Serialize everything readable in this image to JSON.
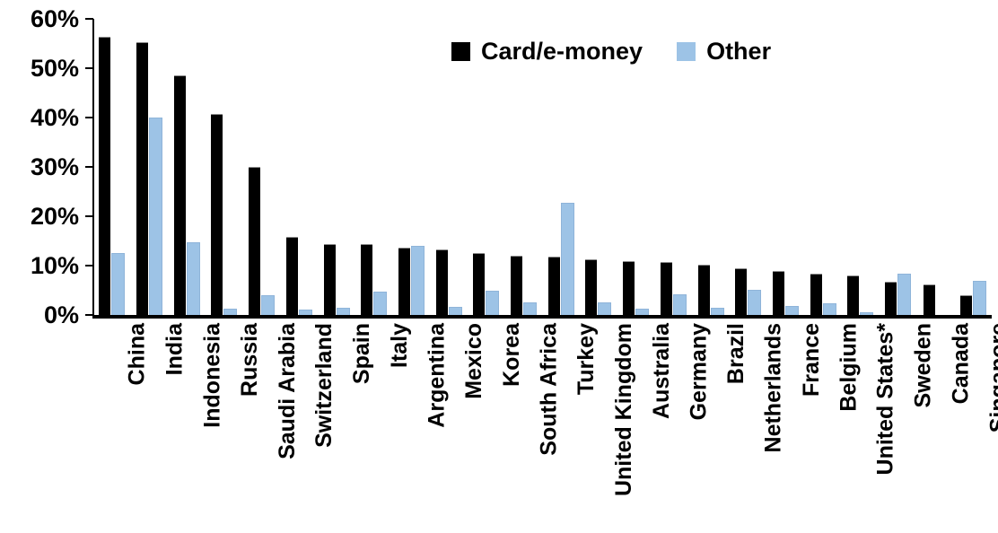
{
  "chart_data": {
    "type": "bar",
    "title": "",
    "xlabel": "",
    "ylabel": "",
    "ylim": [
      0,
      60
    ],
    "ytick_values": [
      0,
      10,
      20,
      30,
      40,
      50,
      60
    ],
    "ytick_labels": [
      "0%",
      "10%",
      "20%",
      "30%",
      "40%",
      "50%",
      "60%"
    ],
    "grid": false,
    "legend_position": "top-center",
    "categories": [
      "China",
      "India",
      "Indonesia",
      "Russia",
      "Saudi Arabia",
      "Switzerland",
      "Spain",
      "Italy",
      "Argentina",
      "Mexico",
      "Korea",
      "South Africa",
      "Turkey",
      "United Kingdom",
      "Australia",
      "Germany",
      "Brazil",
      "Netherlands",
      "France",
      "Belgium",
      "United States*",
      "Sweden",
      "Canada",
      "Singapore"
    ],
    "series": [
      {
        "name": "Card/e-money",
        "color": "#000000",
        "values": [
          56.2,
          55.0,
          48.3,
          40.6,
          29.9,
          15.7,
          14.2,
          14.1,
          13.4,
          13.0,
          12.3,
          11.8,
          11.6,
          11.1,
          10.8,
          10.6,
          10.0,
          9.3,
          8.7,
          8.2,
          7.9,
          6.6,
          6.0,
          3.9
        ]
      },
      {
        "name": "Other",
        "color": "#9DC3E6",
        "values": [
          12.4,
          39.8,
          14.5,
          1.0,
          3.9,
          0.9,
          1.2,
          4.6,
          13.9,
          1.4,
          4.8,
          2.4,
          22.6,
          2.4,
          1.0,
          4.0,
          1.2,
          4.9,
          1.6,
          2.1,
          0.3,
          8.2,
          0.0,
          6.7
        ]
      }
    ]
  },
  "legend": {
    "items": [
      {
        "label": "Card/e-money",
        "color": "#000000"
      },
      {
        "label": "Other",
        "color": "#9DC3E6"
      }
    ]
  }
}
